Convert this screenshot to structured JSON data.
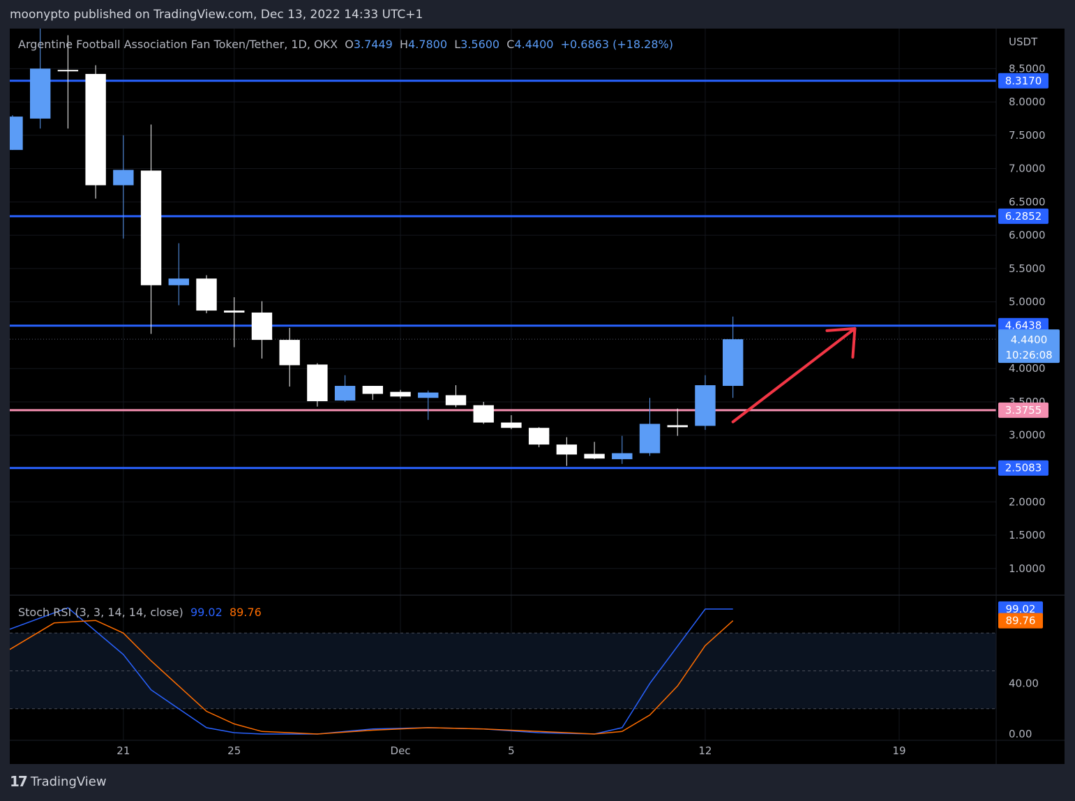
{
  "header": {
    "publisher_text": "moonypto published on TradingView.com, Dec 13, 2022 14:33 UTC+1"
  },
  "legend": {
    "symbol": "Argentine Football Association Fan Token/Tether, 1D, OKX",
    "o_label": "O",
    "o_value": "3.7449",
    "h_label": "H",
    "h_value": "4.7800",
    "l_label": "L",
    "l_value": "3.5600",
    "c_label": "C",
    "c_value": "4.4400",
    "change": "+0.6863 (+18.28%)"
  },
  "rsi_legend": {
    "title": "Stoch RSI (3, 3, 14, 14, close)",
    "k_value": "99.02",
    "d_value": "89.76"
  },
  "footer": {
    "brand": "TradingView",
    "logo_text": "17"
  },
  "colors": {
    "up": "#5b9cf6",
    "down": "#ffffff",
    "level": "#2962ff",
    "pink": "#f48fb1",
    "k_line": "#2962ff",
    "d_line": "#ff6d00",
    "arrow": "#f23645"
  },
  "chart_data": [
    {
      "type": "candlestick",
      "title": "Argentine Football Association Fan Token/Tether, 1D, OKX",
      "currency_label": "USDT",
      "ylim": [
        0.6,
        9.1
      ],
      "y_ticks": [
        "8.5000",
        "8.0000",
        "7.5000",
        "7.0000",
        "6.5000",
        "6.0000",
        "5.5000",
        "5.0000",
        "4.0000",
        "3.5000",
        "3.0000",
        "2.0000",
        "1.5000",
        "1.0000"
      ],
      "x_ticks": [
        {
          "label": "21",
          "day": 21
        },
        {
          "label": "25",
          "day": 25
        },
        {
          "label": "Dec",
          "day": 31
        },
        {
          "label": "5",
          "day": 35
        },
        {
          "label": "12",
          "day": 42
        },
        {
          "label": "19",
          "day": 49
        }
      ],
      "x_range": [
        16.9,
        52.5
      ],
      "candles": [
        {
          "day": 17,
          "o": 7.28,
          "h": 7.8,
          "l": 7.28,
          "c": 7.78
        },
        {
          "day": 18,
          "o": 7.75,
          "h": 9.2,
          "l": 7.6,
          "c": 8.5
        },
        {
          "day": 19,
          "o": 8.48,
          "h": 9.0,
          "l": 7.6,
          "c": 8.46
        },
        {
          "day": 20,
          "o": 8.42,
          "h": 8.55,
          "l": 6.55,
          "c": 6.75
        },
        {
          "day": 21,
          "o": 6.75,
          "h": 7.5,
          "l": 5.95,
          "c": 6.98
        },
        {
          "day": 22,
          "o": 6.97,
          "h": 7.66,
          "l": 4.52,
          "c": 5.25
        },
        {
          "day": 23,
          "o": 5.25,
          "h": 5.88,
          "l": 4.95,
          "c": 5.35
        },
        {
          "day": 24,
          "o": 5.35,
          "h": 5.4,
          "l": 4.83,
          "c": 4.87
        },
        {
          "day": 25,
          "o": 4.87,
          "h": 5.07,
          "l": 4.32,
          "c": 4.84
        },
        {
          "day": 26,
          "o": 4.84,
          "h": 5.01,
          "l": 4.15,
          "c": 4.43
        },
        {
          "day": 27,
          "o": 4.43,
          "h": 4.61,
          "l": 3.73,
          "c": 4.05
        },
        {
          "day": 28,
          "o": 4.06,
          "h": 4.08,
          "l": 3.43,
          "c": 3.51
        },
        {
          "day": 29,
          "o": 3.52,
          "h": 3.9,
          "l": 3.5,
          "c": 3.74
        },
        {
          "day": 30,
          "o": 3.74,
          "h": 3.74,
          "l": 3.53,
          "c": 3.62
        },
        {
          "day": 31,
          "o": 3.65,
          "h": 3.68,
          "l": 3.55,
          "c": 3.58
        },
        {
          "day": 32,
          "o": 3.56,
          "h": 3.67,
          "l": 3.23,
          "c": 3.64
        },
        {
          "day": 33,
          "o": 3.6,
          "h": 3.75,
          "l": 3.42,
          "c": 3.45
        },
        {
          "day": 34,
          "o": 3.45,
          "h": 3.5,
          "l": 3.17,
          "c": 3.19
        },
        {
          "day": 35,
          "o": 3.19,
          "h": 3.3,
          "l": 3.09,
          "c": 3.11
        },
        {
          "day": 36,
          "o": 3.11,
          "h": 3.12,
          "l": 2.82,
          "c": 2.86
        },
        {
          "day": 37,
          "o": 2.86,
          "h": 2.97,
          "l": 2.54,
          "c": 2.71
        },
        {
          "day": 38,
          "o": 2.72,
          "h": 2.9,
          "l": 2.64,
          "c": 2.65
        },
        {
          "day": 39,
          "o": 2.64,
          "h": 2.99,
          "l": 2.57,
          "c": 2.73
        },
        {
          "day": 40,
          "o": 2.73,
          "h": 3.56,
          "l": 2.69,
          "c": 3.17
        },
        {
          "day": 41,
          "o": 3.15,
          "h": 3.4,
          "l": 2.99,
          "c": 3.12
        },
        {
          "day": 42,
          "o": 3.14,
          "h": 3.9,
          "l": 3.08,
          "c": 3.75
        },
        {
          "day": 43,
          "o": 3.74,
          "h": 4.78,
          "l": 3.56,
          "c": 4.44
        }
      ],
      "levels": [
        {
          "value": 8.317,
          "label": "8.3170",
          "color": "#2962ff"
        },
        {
          "value": 6.2852,
          "label": "6.2852",
          "color": "#2962ff"
        },
        {
          "value": 4.6438,
          "label": "4.6438",
          "color": "#2962ff"
        },
        {
          "value": 3.3755,
          "label": "3.3755",
          "color": "#f48fb1"
        },
        {
          "value": 2.5083,
          "label": "2.5083",
          "color": "#2962ff"
        }
      ],
      "last_price": {
        "value": 4.44,
        "label": "4.4400",
        "countdown": "10:26:08"
      },
      "annotation": {
        "type": "arrow",
        "from": {
          "day": 43,
          "price": 3.2
        },
        "to": {
          "day": 47.4,
          "price": 4.6
        }
      }
    },
    {
      "type": "line",
      "title": "Stoch RSI (3, 3, 14, 14, close)",
      "ylim": [
        -5,
        110
      ],
      "y_ticks": [
        "40.00",
        "0.00"
      ],
      "bands": [
        20,
        50,
        80
      ],
      "series": [
        {
          "name": "K",
          "color": "#2962ff",
          "points": [
            [
              16.9,
              83
            ],
            [
              19,
              100
            ],
            [
              21,
              63
            ],
            [
              22,
              35
            ],
            [
              24,
              5
            ],
            [
              25,
              1
            ],
            [
              26,
              0
            ],
            [
              28,
              0
            ],
            [
              30,
              4
            ],
            [
              32,
              5
            ],
            [
              34,
              4
            ],
            [
              36,
              1
            ],
            [
              38,
              0
            ],
            [
              39,
              5
            ],
            [
              40,
              40
            ],
            [
              42,
              99.02
            ],
            [
              43,
              99.02
            ]
          ]
        },
        {
          "name": "D",
          "color": "#ff6d00",
          "points": [
            [
              16.9,
              67
            ],
            [
              18.5,
              88
            ],
            [
              20,
              90
            ],
            [
              21,
              80
            ],
            [
              22,
              58
            ],
            [
              24,
              18
            ],
            [
              25,
              8
            ],
            [
              26,
              2
            ],
            [
              28,
              0
            ],
            [
              30,
              3
            ],
            [
              32,
              5
            ],
            [
              34,
              4
            ],
            [
              36,
              2
            ],
            [
              38,
              0
            ],
            [
              39,
              2
            ],
            [
              40,
              15
            ],
            [
              41,
              38
            ],
            [
              42,
              70
            ],
            [
              43,
              89.76
            ]
          ]
        }
      ],
      "last_values": {
        "k": "99.02",
        "d": "89.76"
      }
    }
  ]
}
